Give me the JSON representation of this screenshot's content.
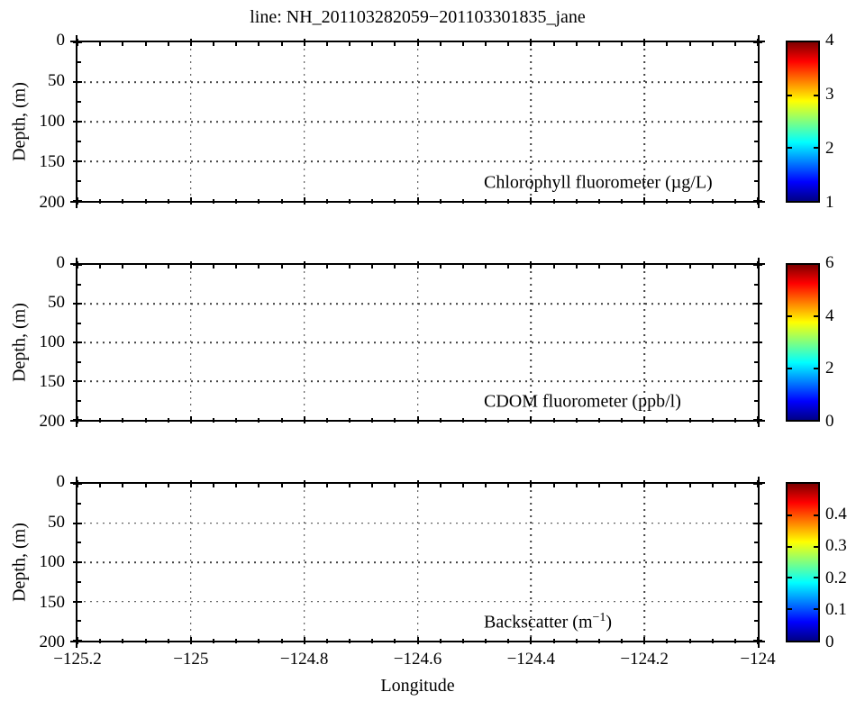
{
  "figure": {
    "title": "line: NH_201103282059−201103301835_jane",
    "xlabel": "Longitude",
    "background_color": "#ffffff",
    "axis_color": "#000000",
    "text_color": "#000000"
  },
  "x_tick_labels": [
    "−125.2",
    "−125",
    "−124.8",
    "−124.6",
    "−124.4",
    "−124.2",
    "−124"
  ],
  "y_tick_labels": [
    "0",
    "50",
    "100",
    "150",
    "200"
  ],
  "colormap_jet_stops": [
    [
      "0%",
      "#000085"
    ],
    [
      "12%",
      "#0000ff"
    ],
    [
      "37%",
      "#00ffff"
    ],
    [
      "63%",
      "#ffff00"
    ],
    [
      "88%",
      "#ff0000"
    ],
    [
      "100%",
      "#7f0000"
    ]
  ],
  "chart_data": [
    {
      "type": "heatmap",
      "name": "chlorophyll-fluorometer-section",
      "label_pre": "Chlorophyll fluorometer (µg/L)",
      "label_sup": "",
      "label_post": "",
      "ylabel": "Depth, (m)",
      "xlabel": "Longitude",
      "x_range": [
        -125.2,
        -124
      ],
      "x_ticks": [
        -125.2,
        -125,
        -124.8,
        -124.6,
        -124.4,
        -124.2,
        -124
      ],
      "y_range": [
        0,
        200
      ],
      "y_axis_direction": "reversed (0 at top, 200 at bottom)",
      "y_ticks": [
        0,
        50,
        100,
        150,
        200
      ],
      "grid": "dotted, at major ticks",
      "values": [],
      "colorbar": {
        "min": 1,
        "max": 4,
        "ticks": [
          1,
          2,
          3,
          4
        ],
        "colormap": "jet",
        "location": "right"
      }
    },
    {
      "type": "heatmap",
      "name": "cdom-fluorometer-section",
      "label_pre": "CDOM fluorometer (ppb/l)",
      "label_sup": "",
      "label_post": "",
      "ylabel": "Depth, (m)",
      "xlabel": "Longitude",
      "x_range": [
        -125.2,
        -124
      ],
      "x_ticks": [
        -125.2,
        -125,
        -124.8,
        -124.6,
        -124.4,
        -124.2,
        -124
      ],
      "y_range": [
        0,
        200
      ],
      "y_axis_direction": "reversed (0 at top, 200 at bottom)",
      "y_ticks": [
        0,
        50,
        100,
        150,
        200
      ],
      "grid": "dotted, at major ticks",
      "values": [],
      "colorbar": {
        "min": 0,
        "max": 6,
        "ticks": [
          0,
          2,
          4,
          6
        ],
        "colormap": "jet",
        "location": "right"
      }
    },
    {
      "type": "heatmap",
      "name": "backscatter-section",
      "label_pre": "Backscatter (m",
      "label_sup": "−1",
      "label_post": ")",
      "ylabel": "Depth, (m)",
      "xlabel": "Longitude",
      "x_range": [
        -125.2,
        -124
      ],
      "x_ticks": [
        -125.2,
        -125,
        -124.8,
        -124.6,
        -124.4,
        -124.2,
        -124
      ],
      "y_range": [
        0,
        200
      ],
      "y_axis_direction": "reversed (0 at top, 200 at bottom)",
      "y_ticks": [
        0,
        50,
        100,
        150,
        200
      ],
      "grid": "dotted, at major ticks",
      "values": [],
      "colorbar": {
        "min": 0,
        "max": 0.5,
        "ticks": [
          0,
          0.1,
          0.2,
          0.3,
          0.4
        ],
        "colormap": "jet",
        "location": "right"
      }
    }
  ]
}
